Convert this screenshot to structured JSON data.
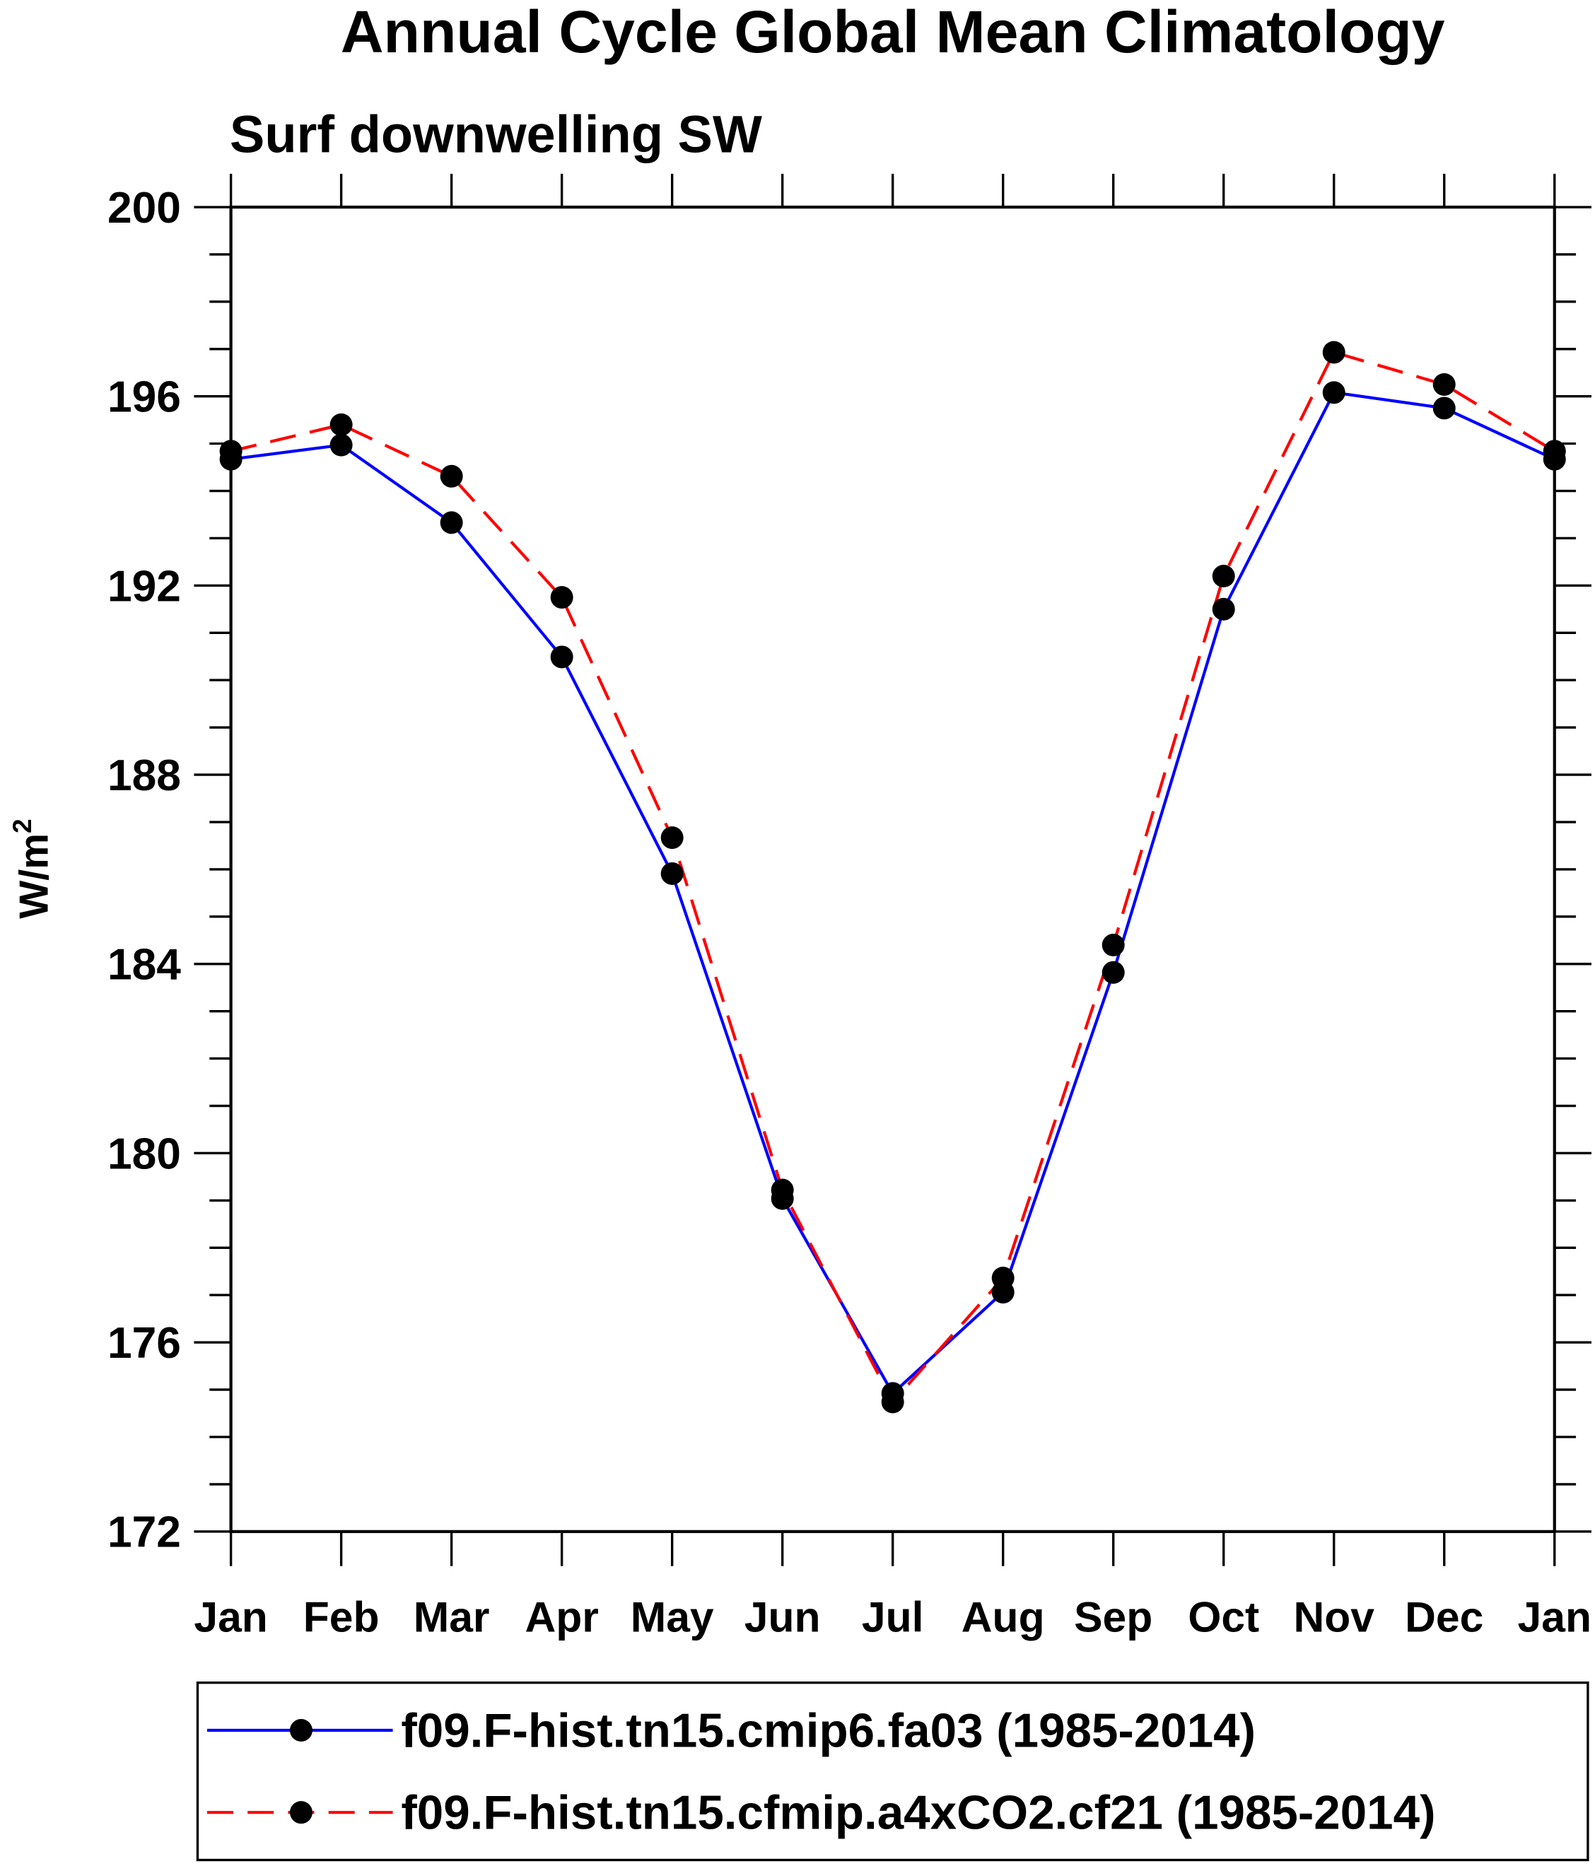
{
  "chart_data": {
    "type": "line",
    "title": "Annual Cycle Global Mean Climatology",
    "subtitle": "Surf downwelling SW",
    "xlabel": "",
    "ylabel": "W/m",
    "ylabel_superscript": "2",
    "ylim": [
      172,
      200
    ],
    "yticks": [
      172,
      176,
      180,
      184,
      188,
      192,
      196,
      200
    ],
    "yminor_step": 1,
    "categories": [
      "Jan",
      "Feb",
      "Mar",
      "Apr",
      "May",
      "Jun",
      "Jul",
      "Aug",
      "Sep",
      "Oct",
      "Nov",
      "Dec",
      "Jan"
    ],
    "grid": false,
    "legend_position": "bottom",
    "series": [
      {
        "name": "f09.F-hist.tn15.cmip6.fa03 (1985-2014)",
        "color": "#0000ff",
        "dash": "solid",
        "marker": "filled-circle",
        "values": [
          194.67,
          194.97,
          193.33,
          190.49,
          185.91,
          179.04,
          174.92,
          177.06,
          183.82,
          191.5,
          196.08,
          195.75,
          194.67
        ]
      },
      {
        "name": "f09.F-hist.tn15.cfmip.a4xCO2.cf21 (1985-2014)",
        "color": "#ff0000",
        "dash": "dashed",
        "marker": "filled-circle",
        "values": [
          194.84,
          195.4,
          194.31,
          191.75,
          186.67,
          179.22,
          174.74,
          177.36,
          184.4,
          192.2,
          196.93,
          196.25,
          194.84
        ]
      }
    ]
  }
}
